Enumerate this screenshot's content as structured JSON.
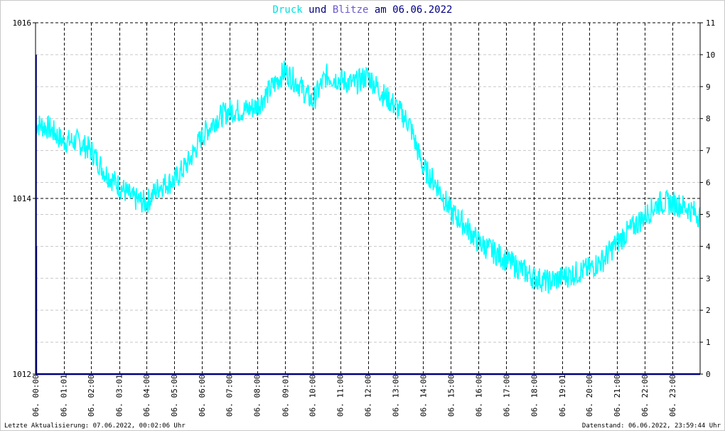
{
  "chart_data": {
    "type": "line",
    "title": {
      "parts": [
        {
          "text": "Druck",
          "color": "#00e0e0"
        },
        {
          "text": " und ",
          "color": "#000080"
        },
        {
          "text": "Blitze",
          "color": "#6a5acd"
        },
        {
          "text": " am 06.06.2022",
          "color": "#000080"
        }
      ]
    },
    "x_tick_labels": [
      "06. 00:00",
      "06. 01:01",
      "06. 02:00",
      "06. 03:01",
      "06. 04:00",
      "06. 05:00",
      "06. 06:00",
      "06. 07:00",
      "06. 08:00",
      "06. 09:01",
      "06. 10:00",
      "06. 11:00",
      "06. 12:00",
      "06. 13:00",
      "06. 14:00",
      "06. 15:00",
      "06. 16:00",
      "06. 17:00",
      "06. 18:00",
      "06. 19:01",
      "06. 20:00",
      "06. 21:00",
      "06. 22:00",
      "06. 23:00"
    ],
    "x_tick_hours": [
      0,
      1.0167,
      2,
      3.0167,
      4,
      5,
      6,
      7,
      8,
      9.0167,
      10,
      11,
      12,
      13,
      14,
      15,
      16,
      17,
      18,
      19.0167,
      20,
      21,
      22,
      23
    ],
    "xlim_hours": [
      0,
      24
    ],
    "y_left": {
      "ticks": [
        "1012",
        "1014",
        "1016"
      ],
      "ylim": [
        1012,
        1016
      ]
    },
    "y_right": {
      "ticks": [
        "0",
        "1",
        "2",
        "3",
        "4",
        "5",
        "6",
        "7",
        "8",
        "9",
        "10",
        "11"
      ],
      "ylim": [
        0,
        11
      ]
    },
    "grid": true,
    "colors": {
      "pressure": "#00ffff",
      "lightning": "#000080",
      "axes": "#000080"
    },
    "series": [
      {
        "key": "pressure",
        "axis": "left",
        "hours": [
          0,
          0.5,
          1,
          1.5,
          2,
          2.5,
          3,
          3.5,
          4,
          4.5,
          5,
          5.5,
          6,
          6.5,
          7,
          7.5,
          8,
          8.5,
          9,
          9.5,
          10,
          10.5,
          11,
          11.5,
          12,
          12.5,
          13,
          13.5,
          14,
          14.5,
          15,
          15.5,
          16,
          16.5,
          17,
          17.5,
          18,
          18.5,
          19,
          19.5,
          20,
          20.5,
          21,
          21.5,
          22,
          22.5,
          23,
          23.5,
          24
        ],
        "values": [
          1014.85,
          1014.8,
          1014.65,
          1014.65,
          1014.55,
          1014.3,
          1014.15,
          1014.0,
          1013.95,
          1014.15,
          1014.2,
          1014.4,
          1014.7,
          1014.9,
          1015.0,
          1015.0,
          1015.05,
          1015.25,
          1015.45,
          1015.3,
          1015.1,
          1015.4,
          1015.35,
          1015.3,
          1015.4,
          1015.2,
          1015.05,
          1014.85,
          1014.35,
          1014.15,
          1013.85,
          1013.7,
          1013.5,
          1013.4,
          1013.3,
          1013.2,
          1013.1,
          1013.05,
          1013.1,
          1013.15,
          1013.2,
          1013.3,
          1013.5,
          1013.65,
          1013.8,
          1013.95,
          1013.95,
          1013.9,
          1013.8
        ]
      },
      {
        "key": "lightning",
        "axis": "right",
        "hours": [
          0.02,
          0.03
        ],
        "values": [
          10,
          4
        ]
      }
    ]
  },
  "footer": {
    "left": "Letzte Aktualisierung: 07.06.2022, 00:02:06 Uhr",
    "right": "Datenstand: 06.06.2022, 23:59:44 Uhr"
  }
}
